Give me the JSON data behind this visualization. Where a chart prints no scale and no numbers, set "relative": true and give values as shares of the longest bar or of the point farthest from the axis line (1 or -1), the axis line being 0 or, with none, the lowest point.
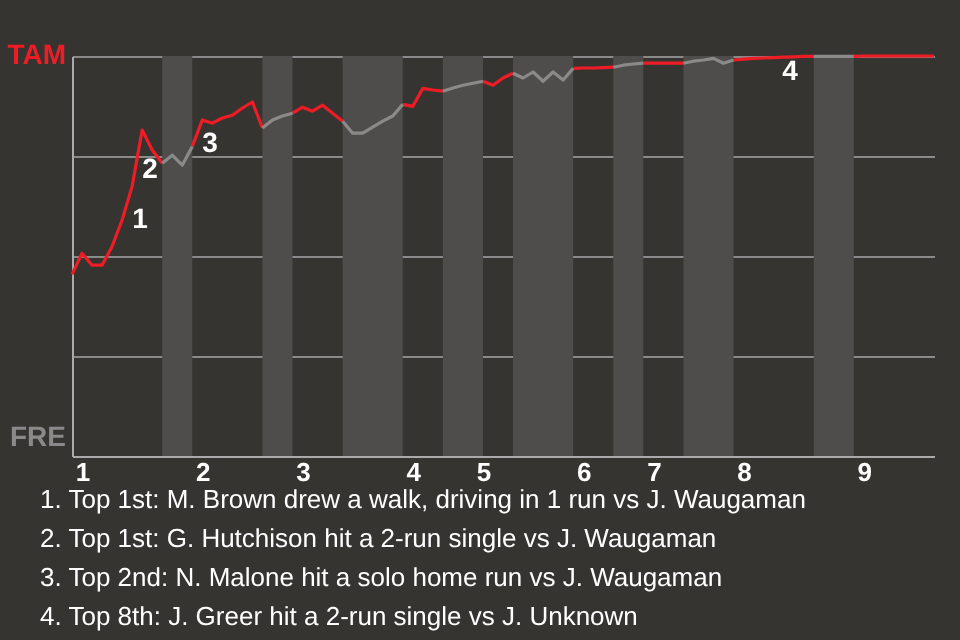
{
  "chart_data": {
    "type": "line",
    "relative": true,
    "categories": [
      null,
      "1",
      null,
      null,
      null,
      null,
      null,
      null,
      null,
      null,
      null,
      null,
      null,
      "2",
      null,
      null,
      null,
      null,
      null,
      null,
      null,
      null,
      null,
      "3",
      null,
      null,
      null,
      null,
      null,
      null,
      null,
      null,
      null,
      null,
      "4",
      null,
      null,
      null,
      null,
      null,
      null,
      "5",
      null,
      null,
      null,
      null,
      null,
      null,
      null,
      null,
      null,
      "6",
      null,
      null,
      null,
      null,
      null,
      null,
      "7",
      null,
      null,
      null,
      null,
      null,
      null,
      null,
      null,
      "8",
      null,
      null,
      null,
      null,
      null,
      null,
      null,
      null,
      null,
      null,
      null,
      "9",
      null,
      null,
      null,
      null,
      null,
      null,
      null
    ],
    "grid": "y",
    "series": [
      {
        "name": "TAM",
        "color": "#ee1c25",
        "values": [
          0.454,
          0.507,
          0.477,
          0.477,
          0.524,
          0.59,
          0.674,
          0.815,
          0.765,
          0.732,
          null,
          null,
          0.774,
          0.84,
          0.832,
          0.845,
          0.852,
          0.87,
          0.885,
          0.82,
          null,
          null,
          0.857,
          0.872,
          0.862,
          0.877,
          0.857,
          0.837,
          null,
          null,
          null,
          null,
          null,
          0.879,
          0.874,
          0.919,
          0.915,
          0.912,
          null,
          null,
          null,
          0.937,
          0.927,
          0.945,
          0.957,
          null,
          null,
          null,
          null,
          null,
          0.969,
          0.97,
          0.97,
          0.971,
          0.972,
          null,
          null,
          0.982,
          0.982,
          0.982,
          0.982,
          0.982,
          null,
          null,
          null,
          null,
          0.99,
          0.992,
          0.994,
          0.995,
          0.996,
          0.997,
          0.998,
          0.999,
          0.999,
          null,
          null,
          null,
          0.999,
          1,
          1,
          1,
          1,
          1,
          1,
          1,
          1
        ],
        "line_style": "solid"
      },
      {
        "name": "FRE",
        "color": "#8a8a8a",
        "values": [
          null,
          null,
          null,
          null,
          null,
          null,
          null,
          null,
          null,
          0.732,
          0.752,
          0.727,
          0.774,
          null,
          null,
          null,
          null,
          null,
          null,
          0.82,
          0.84,
          0.85,
          0.857,
          null,
          null,
          null,
          null,
          0.837,
          0.807,
          0.807,
          0.822,
          0.837,
          0.85,
          0.879,
          null,
          null,
          null,
          0.912,
          0.92,
          0.927,
          0.932,
          0.937,
          null,
          null,
          0.957,
          0.945,
          0.96,
          0.937,
          0.96,
          0.94,
          0.969,
          null,
          null,
          null,
          0.972,
          0.977,
          0.98,
          0.982,
          null,
          null,
          null,
          0.982,
          0.987,
          0.99,
          0.994,
          0.982,
          0.99,
          null,
          null,
          null,
          null,
          null,
          null,
          null,
          0.999,
          0.999,
          0.999,
          0.999,
          0.999,
          null,
          null,
          null,
          null,
          null,
          null,
          null,
          null
        ]
      }
    ],
    "annotations": [
      "1",
      "2",
      "3",
      "4",
      "1. Top 1st: M. Brown drew a walk, driving in 1 run vs J. Waugaman",
      "2. Top 1st: G. Hutchison hit a 2-run single vs J. Waugaman",
      "3. Top 2nd: N. Malone hit a solo home run vs J. Waugaman",
      "4. Top 8th: J. Greer hit a 2-run single vs J. Unknown"
    ]
  }
}
